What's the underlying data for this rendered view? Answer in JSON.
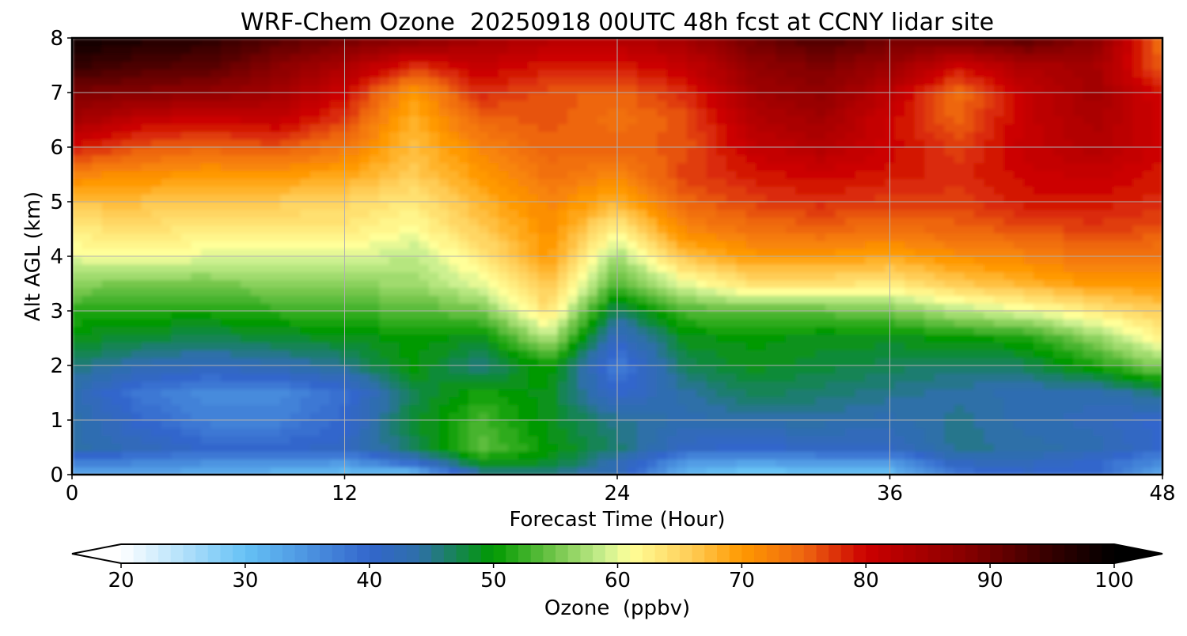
{
  "chart_data": {
    "type": "heatmap",
    "title": "WRF-Chem Ozone  20250918 00UTC 48h fcst at CCNY lidar site",
    "xlabel": "Forecast Time (Hour)",
    "ylabel": "Alt AGL (km)",
    "xlim": [
      0,
      48
    ],
    "ylim": [
      0,
      8
    ],
    "x_ticks": [
      "0",
      "12",
      "24",
      "36",
      "48"
    ],
    "y_ticks": [
      "0",
      "1",
      "2",
      "3",
      "4",
      "5",
      "6",
      "7",
      "8"
    ],
    "grid": true,
    "x": [
      0,
      3,
      6,
      9,
      12,
      15,
      18,
      21,
      24,
      27,
      30,
      33,
      36,
      39,
      42,
      45,
      48
    ],
    "y": [
      0,
      0.25,
      0.5,
      1,
      1.5,
      2,
      2.5,
      3,
      3.5,
      4,
      4.5,
      5,
      5.5,
      6,
      6.5,
      7,
      7.5,
      8
    ],
    "z": [
      [
        32,
        33,
        32,
        31,
        30,
        29,
        44,
        45,
        42,
        31,
        28,
        30,
        30,
        38,
        40,
        40,
        33
      ],
      [
        38,
        37,
        36,
        36,
        35,
        41,
        50,
        49,
        43,
        35,
        34,
        35,
        35,
        42,
        42,
        40,
        36
      ],
      [
        44,
        42,
        40,
        40,
        41,
        47,
        54,
        50,
        46,
        41,
        40,
        41,
        41,
        45,
        44,
        43,
        40
      ],
      [
        44,
        40,
        37,
        37,
        40,
        48,
        53,
        49,
        45,
        43,
        44,
        44,
        43,
        45,
        43,
        42,
        40
      ],
      [
        43,
        38,
        36,
        36,
        39,
        47,
        51,
        49,
        40,
        44,
        47,
        46,
        45,
        44,
        43,
        43,
        46
      ],
      [
        46,
        43,
        42,
        43,
        45,
        50,
        45,
        51,
        37,
        47,
        49,
        48,
        47,
        46,
        47,
        51,
        56
      ],
      [
        49,
        48,
        47,
        48,
        49,
        50,
        49,
        58,
        41,
        49,
        50,
        49,
        49,
        50,
        51,
        56,
        62
      ],
      [
        52,
        51,
        51,
        52,
        53,
        53,
        55,
        64,
        46,
        53,
        54,
        54,
        55,
        58,
        60,
        63,
        66
      ],
      [
        56,
        55,
        55,
        56,
        56,
        57,
        60,
        67,
        53,
        60,
        64,
        64,
        63,
        66,
        68,
        70,
        70
      ],
      [
        60,
        61,
        60,
        60,
        60,
        58,
        63,
        70,
        57,
        67,
        70,
        70,
        69,
        71,
        72,
        74,
        73
      ],
      [
        63,
        64,
        63,
        63,
        63,
        61,
        66,
        71,
        62,
        72,
        74,
        75,
        74,
        75,
        76,
        77,
        76
      ],
      [
        67,
        67,
        66,
        66,
        65,
        63,
        68,
        72,
        68,
        75,
        77,
        78,
        77,
        77,
        79,
        79,
        78
      ],
      [
        72,
        71,
        70,
        70,
        69,
        66,
        70,
        74,
        72,
        77,
        79,
        80,
        79,
        78,
        80,
        81,
        79
      ],
      [
        79,
        76,
        75,
        76,
        73,
        67,
        72,
        75,
        75,
        76,
        81,
        83,
        80,
        77,
        81,
        83,
        80
      ],
      [
        85,
        81,
        80,
        81,
        77,
        68,
        75,
        76,
        74,
        76,
        83,
        85,
        80,
        75,
        81,
        84,
        80
      ],
      [
        89,
        88,
        87,
        85,
        80,
        70,
        78,
        76,
        75,
        78,
        85,
        87,
        82,
        74,
        81,
        85,
        79
      ],
      [
        95,
        93,
        92,
        88,
        84,
        78,
        81,
        79,
        79,
        81,
        87,
        89,
        86,
        80,
        84,
        85,
        75
      ],
      [
        99,
        97,
        96,
        92,
        90,
        88,
        85,
        83,
        83,
        85,
        90,
        93,
        90,
        90,
        92,
        88,
        74
      ]
    ],
    "colorbar": {
      "label": "Ozone  (ppbv)",
      "min": 20,
      "max": 100,
      "ticks": [
        "20",
        "30",
        "40",
        "50",
        "60",
        "70",
        "80",
        "90",
        "100"
      ],
      "extend": "both"
    },
    "colormap": [
      [
        20,
        "#ffffff"
      ],
      [
        30,
        "#66c2f5"
      ],
      [
        40,
        "#3366cc"
      ],
      [
        44,
        "#2e6fa8"
      ],
      [
        50,
        "#009900"
      ],
      [
        55,
        "#74c64c"
      ],
      [
        59,
        "#ccf090"
      ],
      [
        61,
        "#ffff99"
      ],
      [
        66,
        "#ffcc55"
      ],
      [
        70,
        "#ff9900"
      ],
      [
        75,
        "#ee6611"
      ],
      [
        80,
        "#cc0000"
      ],
      [
        88,
        "#880000"
      ],
      [
        95,
        "#330000"
      ],
      [
        100,
        "#000000"
      ]
    ]
  }
}
